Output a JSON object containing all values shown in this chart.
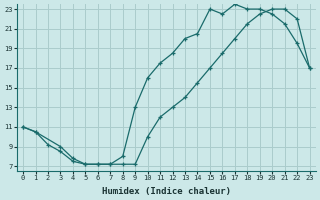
{
  "title": "",
  "xlabel": "Humidex (Indice chaleur)",
  "ylabel": "",
  "xlim": [
    -0.5,
    23.5
  ],
  "ylim": [
    6.5,
    23.5
  ],
  "xticks": [
    0,
    1,
    2,
    3,
    4,
    5,
    6,
    7,
    8,
    9,
    10,
    11,
    12,
    13,
    14,
    15,
    16,
    17,
    18,
    19,
    20,
    21,
    22,
    23
  ],
  "yticks": [
    7,
    9,
    11,
    13,
    15,
    17,
    19,
    21,
    23
  ],
  "background_color": "#cce8e8",
  "grid_color": "#aacccc",
  "line_color": "#1a6b6b",
  "line1_x": [
    0,
    1,
    2,
    3,
    4,
    5,
    6,
    7,
    8,
    9,
    10,
    11,
    12,
    13,
    14,
    15,
    16,
    17,
    18,
    19,
    20,
    21,
    22,
    23
  ],
  "line1_y": [
    11,
    10.5,
    9.2,
    8.5,
    7.5,
    7.2,
    7.2,
    7.2,
    8.0,
    13.0,
    16.0,
    17.5,
    18.5,
    20.0,
    20.5,
    23.0,
    22.5,
    23.5,
    23.0,
    23.0,
    22.5,
    21.5,
    19.5,
    17.0
  ],
  "line2_x": [
    0,
    1,
    3,
    4,
    5,
    6,
    7,
    8,
    9,
    10,
    11,
    12,
    13,
    14,
    15,
    16,
    17,
    18,
    19,
    20,
    21,
    22,
    23
  ],
  "line2_y": [
    11,
    10.5,
    9.0,
    7.8,
    7.2,
    7.2,
    7.2,
    7.2,
    7.2,
    10.0,
    12.0,
    13.0,
    14.0,
    15.5,
    17.0,
    18.5,
    20.0,
    21.5,
    22.5,
    23.0,
    23.0,
    22.0,
    17.0
  ]
}
